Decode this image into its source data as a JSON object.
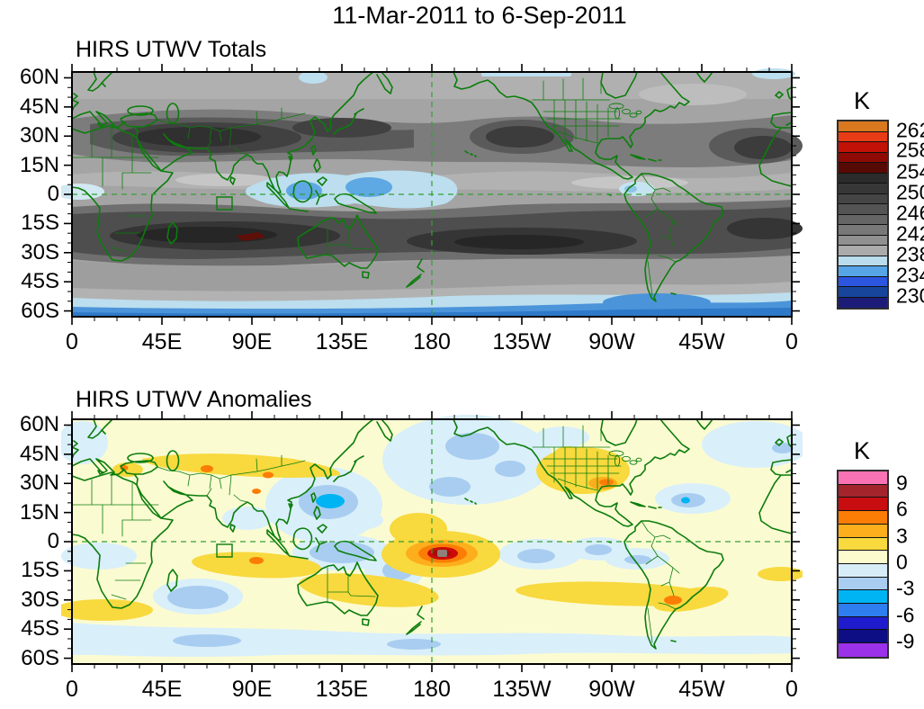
{
  "figure_title": "11-Mar-2011 to 6-Sep-2011",
  "chart_data": [
    {
      "type": "heatmap",
      "subtype": "filled-contour-world-map",
      "title": "HIRS UTWV Totals",
      "units": "K",
      "projection": "equirectangular, longitude 0E eastward to 360 (dateline at center)",
      "lon_axis": {
        "tick_labels": [
          "0",
          "45E",
          "90E",
          "135E",
          "180",
          "135W",
          "90W",
          "45W",
          "0"
        ],
        "minor_tick_deg": 11.25
      },
      "lat_axis": {
        "tick_labels": [
          "60N",
          "45N",
          "30N",
          "15N",
          "0",
          "15S",
          "30S",
          "45S",
          "60S"
        ],
        "range_deg": [
          -63,
          63
        ],
        "minor_tick_deg": 5
      },
      "reference_lines": {
        "equator": "dashed green at 0 lat",
        "dateline": "dashed green at 180 lon",
        "small_box": "green square outline near 73E, 4S"
      },
      "colorbar": {
        "title": "K",
        "tick_labels": [
          "262",
          "258",
          "254",
          "250",
          "246",
          "242",
          "238",
          "234",
          "230"
        ],
        "levels_k": [
          228,
          230,
          232,
          234,
          236,
          238,
          240,
          242,
          244,
          246,
          248,
          250,
          252,
          254,
          256,
          258,
          260,
          262,
          264
        ],
        "cell_colors_top_to_bottom": [
          "#d9781e",
          "#e83c16",
          "#c21208",
          "#8f0a04",
          "#570a04",
          "#2b2b2b",
          "#373737",
          "#454545",
          "#545454",
          "#656565",
          "#787878",
          "#909090",
          "#ababab",
          "#b9ddec",
          "#56a5e6",
          "#2c55e0",
          "#17459c",
          "#1c1c78"
        ]
      },
      "features": [
        {
          "region": "high northern latitudes 45-60N",
          "value_k": "240-246"
        },
        {
          "region": "NH subtropical dry bands: N Africa / Middle East / S Asia, NE Pacific, N Atlantic (15-35N)",
          "value_k": "248-254"
        },
        {
          "region": "equatorial band / ITCZ",
          "value_k": "238-244"
        },
        {
          "region": "Maritime Continent (Indonesia / W Pacific) minimum",
          "value_k": "232-238"
        },
        {
          "region": "NW South America coast",
          "value_k": "236-238"
        },
        {
          "region": "SH subtropical dry band 10-35S (S Indian Ocean and S Pacific cores)",
          "value_k": "250-256"
        },
        {
          "region": "localized maximum near 80-95E, 21S",
          "value_k": "256-258"
        },
        {
          "region": "Southern Ocean 50-63S",
          "value_k": "230-238"
        }
      ]
    },
    {
      "type": "heatmap",
      "subtype": "filled-contour-world-map",
      "title": "HIRS UTWV Anomalies",
      "units": "K",
      "projection": "equirectangular, longitude 0E eastward to 360 (dateline at center)",
      "lon_axis": {
        "tick_labels": [
          "0",
          "45E",
          "90E",
          "135E",
          "180",
          "135W",
          "90W",
          "45W",
          "0"
        ],
        "minor_tick_deg": 11.25
      },
      "lat_axis": {
        "tick_labels": [
          "60N",
          "45N",
          "30N",
          "15N",
          "0",
          "15S",
          "30S",
          "45S",
          "60S"
        ],
        "range_deg": [
          -63,
          63
        ],
        "minor_tick_deg": 5
      },
      "reference_lines": {
        "equator": "dashed green at 0 lat",
        "dateline": "dashed green at 180 lon",
        "small_box": "green square outline near 73E, 4S"
      },
      "colorbar": {
        "title": "K",
        "tick_labels": [
          "9",
          "6",
          "3",
          "0",
          "-3",
          "-6",
          "-9"
        ],
        "levels_k": [
          -10.5,
          -9,
          -7.5,
          -6,
          -4.5,
          -3,
          -1.5,
          0,
          1.5,
          3,
          4.5,
          6,
          7.5,
          9,
          10.5
        ],
        "cell_colors_top_to_bottom": [
          "#f972b4",
          "#a3242b",
          "#c80d10",
          "#fb7d06",
          "#fdae1c",
          "#f8d93e",
          "#fbfbce",
          "#d6edf8",
          "#a8cdf0",
          "#00b4f4",
          "#2e7ef0",
          "#1f1ccd",
          "#0d0d84",
          "#9c31ea"
        ]
      },
      "features": [
        {
          "region": "central equatorial Pacific bullseye near 178W, 6S",
          "value_k": "+7.5 to +9"
        },
        {
          "region": "ring around bullseye",
          "value_k": "+1.5 to +6"
        },
        {
          "region": "Philippine Sea 125-155E, 8-18N",
          "value_k": "-3 to -4.5"
        },
        {
          "region": "Indonesia / Borneo",
          "value_k": "-1.5 to -3"
        },
        {
          "region": "central Asia 30-45N band",
          "value_k": "+1.5 to +3"
        },
        {
          "region": "S Indian Ocean to N Australia band 8-25S",
          "value_k": "+1.5 to +3"
        },
        {
          "region": "SW Indian Ocean 25-40S",
          "value_k": "-1.5 to -3"
        },
        {
          "region": "SW United States to Gulf of Mexico",
          "value_k": "+1.5 to +4.5"
        },
        {
          "region": "Caribbean / W Atlantic 15-25N",
          "value_k": "-1.5 to -4.5"
        },
        {
          "region": "S Pacific 20-35S band extending to Argentina",
          "value_k": "+1.5 to +3"
        },
        {
          "region": "NE Pacific mid-latitudes",
          "value_k": "-1.5 to -3"
        },
        {
          "region": "Southern Ocean 45-60S band",
          "value_k": "-1.5"
        }
      ]
    }
  ],
  "palette_notes": {
    "coastline_green": "#0b7d0b",
    "reference_line_green": "#33a033",
    "page_background": "#ffffff",
    "text_color": "#000000"
  }
}
